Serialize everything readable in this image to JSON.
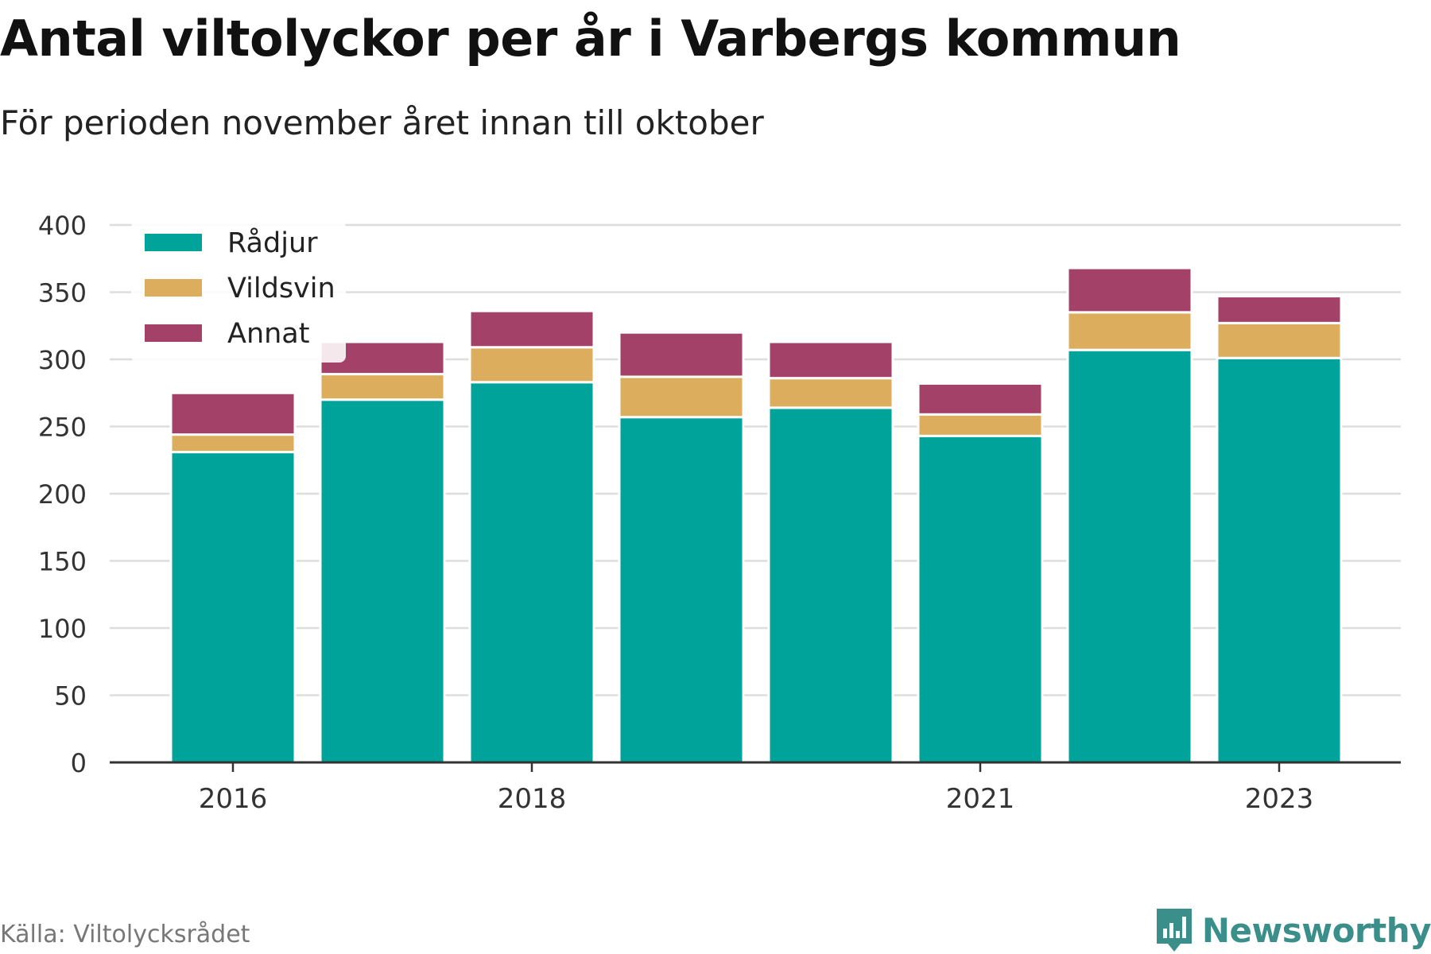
{
  "title": "Antal viltolyckor per år i Varbergs kommun",
  "subtitle": "För perioden november året innan till oktober",
  "source": "Källa: Viltolycksrådet",
  "brand": "Newsworthy",
  "chart_data": {
    "type": "bar",
    "stacked": true,
    "categories": [
      "2016",
      "2017",
      "2018",
      "2019",
      "2020",
      "2021",
      "2022",
      "2023"
    ],
    "x_tick_labels": [
      "2016",
      "2018",
      "2021",
      "2023"
    ],
    "series": [
      {
        "name": "Rådjur",
        "color": "#00a39a",
        "values": [
          231,
          270,
          283,
          257,
          264,
          243,
          307,
          301
        ]
      },
      {
        "name": "Vildsvin",
        "color": "#dbad5c",
        "values": [
          13,
          19,
          26,
          30,
          22,
          16,
          28,
          26
        ]
      },
      {
        "name": "Annat",
        "color": "#a34168",
        "values": [
          31,
          24,
          27,
          33,
          27,
          23,
          33,
          20
        ]
      }
    ],
    "ylim": [
      0,
      400
    ],
    "yticks": [
      0,
      50,
      100,
      150,
      200,
      250,
      300,
      350,
      400
    ],
    "grid": true,
    "legend_position": "top-left"
  }
}
